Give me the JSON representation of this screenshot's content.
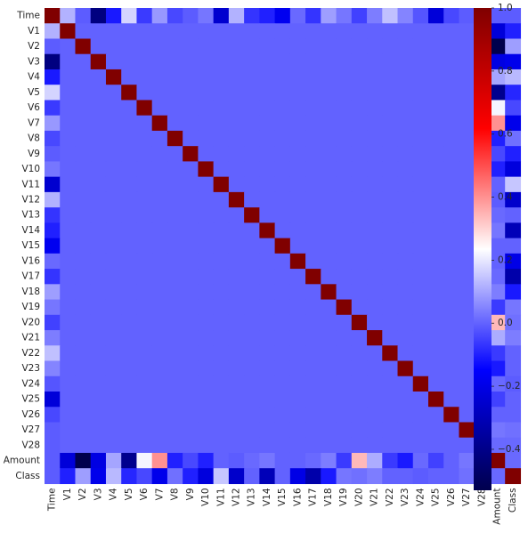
{
  "chart_data": {
    "type": "heatmap",
    "title": "",
    "colormap": "seismic",
    "vmin": -0.53,
    "vmax": 1.0,
    "labels": [
      "Time",
      "V1",
      "V2",
      "V3",
      "V4",
      "V5",
      "V6",
      "V7",
      "V8",
      "V9",
      "V10",
      "V11",
      "V12",
      "V13",
      "V14",
      "V15",
      "V16",
      "V17",
      "V18",
      "V19",
      "V20",
      "V21",
      "V22",
      "V23",
      "V24",
      "V25",
      "V26",
      "V27",
      "V28",
      "Amount",
      "Class"
    ],
    "time_column": [
      1.0,
      0.12,
      -0.01,
      -0.42,
      -0.11,
      0.17,
      -0.06,
      0.08,
      -0.04,
      -0.01,
      0.03,
      -0.25,
      0.12,
      -0.07,
      -0.1,
      -0.18,
      0.01,
      -0.07,
      0.09,
      0.03,
      -0.05,
      0.04,
      0.14,
      0.05,
      -0.02,
      -0.23,
      -0.04,
      -0.01,
      -0.01,
      -0.01,
      -0.01
    ],
    "amount_column": [
      -0.01,
      -0.23,
      -0.53,
      -0.21,
      0.1,
      -0.39,
      0.22,
      0.4,
      -0.1,
      -0.04,
      -0.1,
      0.0,
      -0.01,
      0.01,
      0.03,
      -0.0,
      -0.0,
      0.01,
      0.04,
      -0.06,
      0.34,
      0.11,
      -0.06,
      -0.11,
      0.01,
      -0.05,
      -0.0,
      0.03,
      0.01,
      1.0,
      0.01
    ],
    "class_column": [
      -0.01,
      -0.1,
      0.09,
      -0.19,
      0.13,
      -0.09,
      -0.04,
      -0.19,
      0.02,
      -0.1,
      -0.22,
      0.15,
      -0.26,
      -0.0,
      -0.3,
      -0.0,
      -0.2,
      -0.33,
      -0.11,
      0.03,
      0.02,
      0.04,
      0.0,
      -0.0,
      -0.01,
      0.0,
      0.0,
      0.02,
      0.01,
      0.01,
      1.0
    ],
    "colorbar_ticks": [
      1.0,
      0.8,
      0.6,
      0.4,
      0.2,
      0.0,
      -0.2,
      -0.4
    ],
    "colorbar_tick_labels": [
      "1.0",
      "0.8",
      "0.6",
      "0.4",
      "0.2",
      "0.0",
      "−0.2",
      "−0.4"
    ]
  }
}
